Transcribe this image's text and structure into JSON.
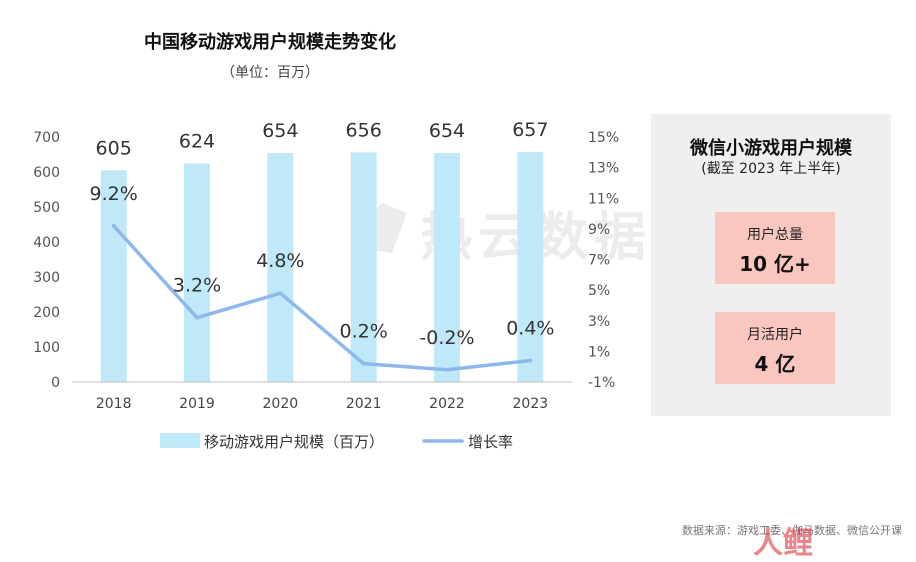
{
  "header": {
    "title": "中国移动游戏用户规模走势变化",
    "subtitle": "（单位：百万）"
  },
  "chart_data": {
    "type": "bar",
    "categories": [
      "2018",
      "2019",
      "2020",
      "2021",
      "2022",
      "2023"
    ],
    "series": [
      {
        "name": "移动游戏用户规模（百万）",
        "type": "bar",
        "axis": "left",
        "values": [
          605,
          624,
          654,
          656,
          654,
          657
        ],
        "labels": [
          "605",
          "624",
          "654",
          "656",
          "654",
          "657"
        ]
      },
      {
        "name": "增长率",
        "type": "line",
        "axis": "right",
        "values": [
          9.2,
          3.2,
          4.8,
          0.2,
          -0.2,
          0.4
        ],
        "labels": [
          "9.2%",
          "3.2%",
          "4.8%",
          "0.2%",
          "-0.2%",
          "0.4%"
        ]
      }
    ],
    "y_left": {
      "ylim": [
        0,
        700
      ],
      "ticks": [
        "0",
        "100",
        "200",
        "300",
        "400",
        "500",
        "600",
        "700"
      ]
    },
    "y_right": {
      "ylim": [
        -1,
        15
      ],
      "ticks": [
        "-1%",
        "1%",
        "3%",
        "5%",
        "7%",
        "9%",
        "11%",
        "13%",
        "15%"
      ]
    },
    "legend_position": "bottom",
    "grid": false,
    "colors": {
      "bar": "#bfe9f9",
      "line": "#8fb8ea",
      "axis": "#bfbfbf"
    }
  },
  "side_panel": {
    "title": "微信小游戏用户规模",
    "subtitle": "(截至 2023 年上半年)",
    "stats": [
      {
        "label": "用户总量",
        "value": "10 亿+"
      },
      {
        "label": "月活用户",
        "value": "4 亿"
      }
    ],
    "box_color": "#f9c7c0"
  },
  "watermark": "热云数据",
  "corner_logo": "人鲤",
  "source": "数据来源：游戏工委、伽马数据、微信公开课"
}
